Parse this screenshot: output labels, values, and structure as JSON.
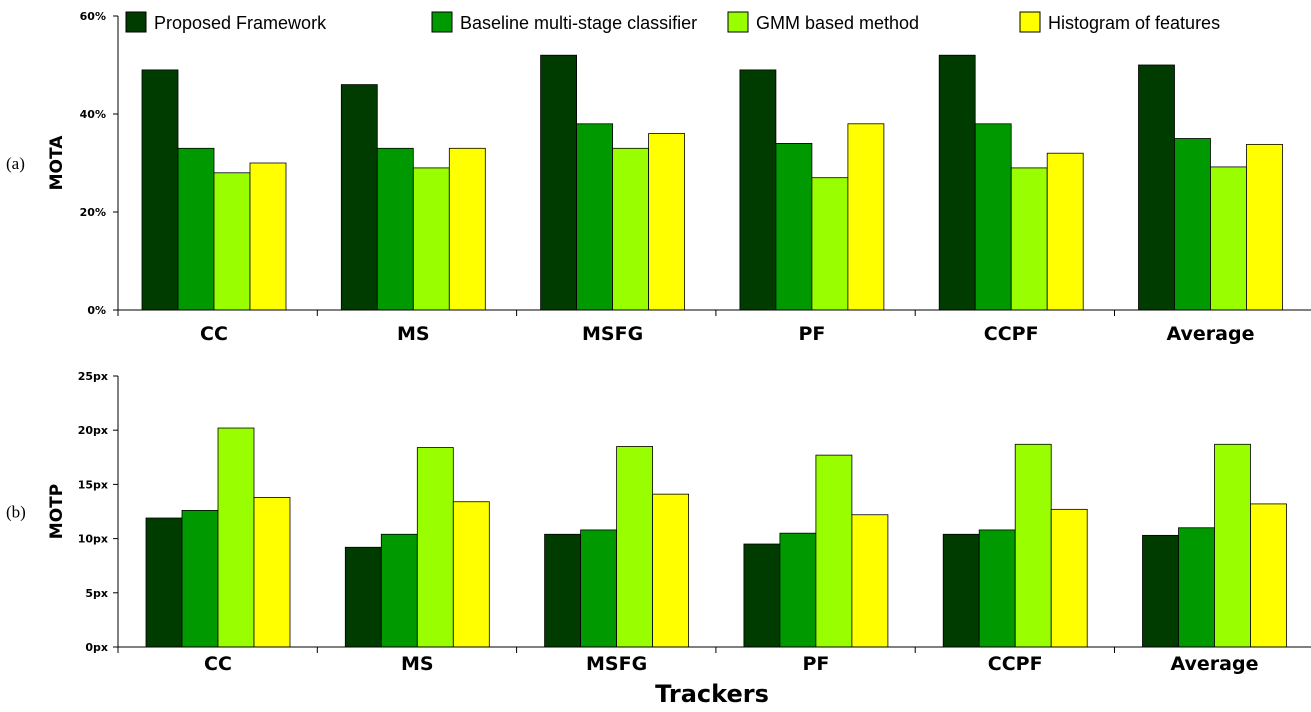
{
  "legend": [
    {
      "name": "Proposed Framework",
      "color": "#003b00"
    },
    {
      "name": "Baseline multi-stage classifier",
      "color": "#009900"
    },
    {
      "name": "GMM based method",
      "color": "#99ff00"
    },
    {
      "name": "Histogram of features",
      "color": "#ffff00"
    }
  ],
  "xlabel": "Trackers",
  "chart_data": [
    {
      "type": "bar",
      "panel_label": "(a)",
      "ylabel": "MOTA",
      "categories": [
        "CC",
        "MS",
        "MSFG",
        "PF",
        "CCPF",
        "Average"
      ],
      "ylim": [
        0,
        60
      ],
      "yticks": [
        0,
        20,
        40,
        60
      ],
      "ytick_labels": [
        "0%",
        "20%",
        "40%",
        "60%"
      ],
      "series": [
        {
          "name": "Proposed Framework",
          "color": "#003b00",
          "values": [
            49,
            46,
            52,
            49,
            52,
            50
          ]
        },
        {
          "name": "Baseline multi-stage classifier",
          "color": "#009900",
          "values": [
            33,
            33,
            38,
            34,
            38,
            35
          ]
        },
        {
          "name": "GMM based method",
          "color": "#99ff00",
          "values": [
            28,
            29,
            33,
            27,
            29,
            29.2
          ]
        },
        {
          "name": "Histogram of features",
          "color": "#ffff00",
          "values": [
            30,
            33,
            36,
            38,
            32,
            33.8
          ]
        }
      ]
    },
    {
      "type": "bar",
      "panel_label": "(b)",
      "ylabel": "MOTP",
      "xlabel": "Trackers",
      "categories": [
        "CC",
        "MS",
        "MSFG",
        "PF",
        "CCPF",
        "Average"
      ],
      "ylim": [
        0,
        25
      ],
      "yticks": [
        0,
        5,
        10,
        15,
        20,
        25
      ],
      "ytick_labels": [
        "0px",
        "5px",
        "10px",
        "15px",
        "20px",
        "25px"
      ],
      "series": [
        {
          "name": "Proposed Framework",
          "color": "#003b00",
          "values": [
            11.9,
            9.2,
            10.4,
            9.5,
            10.4,
            10.3
          ]
        },
        {
          "name": "Baseline multi-stage classifier",
          "color": "#009900",
          "values": [
            12.6,
            10.4,
            10.8,
            10.5,
            10.8,
            11.0
          ]
        },
        {
          "name": "GMM based method",
          "color": "#99ff00",
          "values": [
            20.2,
            18.4,
            18.5,
            17.7,
            18.7,
            18.7
          ]
        },
        {
          "name": "Histogram of features",
          "color": "#ffff00",
          "values": [
            13.8,
            13.4,
            14.1,
            12.2,
            12.7,
            13.2
          ]
        }
      ]
    }
  ]
}
